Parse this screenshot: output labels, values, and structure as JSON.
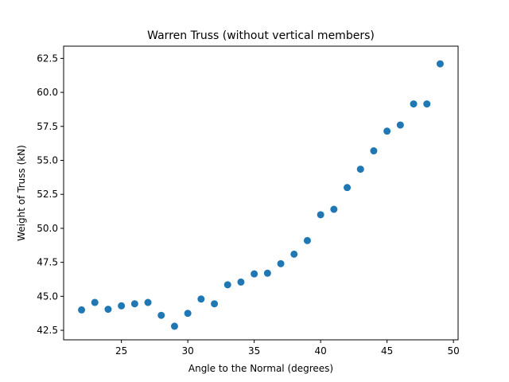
{
  "chart_data": {
    "type": "scatter",
    "title": "Warren Truss (without vertical members)",
    "xlabel": "Angle to the Normal (degrees)",
    "ylabel": "Weight of Truss (kN)",
    "xlim": [
      20.65,
      50.35
    ],
    "ylim": [
      41.8,
      63.4
    ],
    "xticks": [
      25,
      30,
      35,
      40,
      45,
      50
    ],
    "yticks": [
      42.5,
      45.0,
      47.5,
      50.0,
      52.5,
      55.0,
      57.5,
      60.0,
      62.5
    ],
    "xtick_labels": [
      "25",
      "30",
      "35",
      "40",
      "45",
      "50"
    ],
    "ytick_labels": [
      "42.5",
      "45.0",
      "47.5",
      "50.0",
      "52.5",
      "55.0",
      "57.5",
      "60.0",
      "62.5"
    ],
    "grid": false,
    "marker_color": "#1f77b4",
    "x": [
      22,
      23,
      24,
      25,
      26,
      27,
      28,
      29,
      30,
      31,
      32,
      33,
      34,
      35,
      36,
      37,
      38,
      39,
      40,
      41,
      42,
      43,
      44,
      45,
      46,
      47,
      48,
      49
    ],
    "y": [
      44.0,
      44.55,
      44.05,
      44.3,
      44.45,
      44.55,
      43.6,
      42.8,
      43.75,
      44.8,
      44.45,
      45.85,
      46.05,
      46.65,
      46.7,
      47.4,
      48.1,
      49.1,
      51.0,
      51.4,
      53.0,
      54.35,
      55.7,
      57.15,
      57.6,
      59.15,
      59.15,
      62.1
    ]
  }
}
